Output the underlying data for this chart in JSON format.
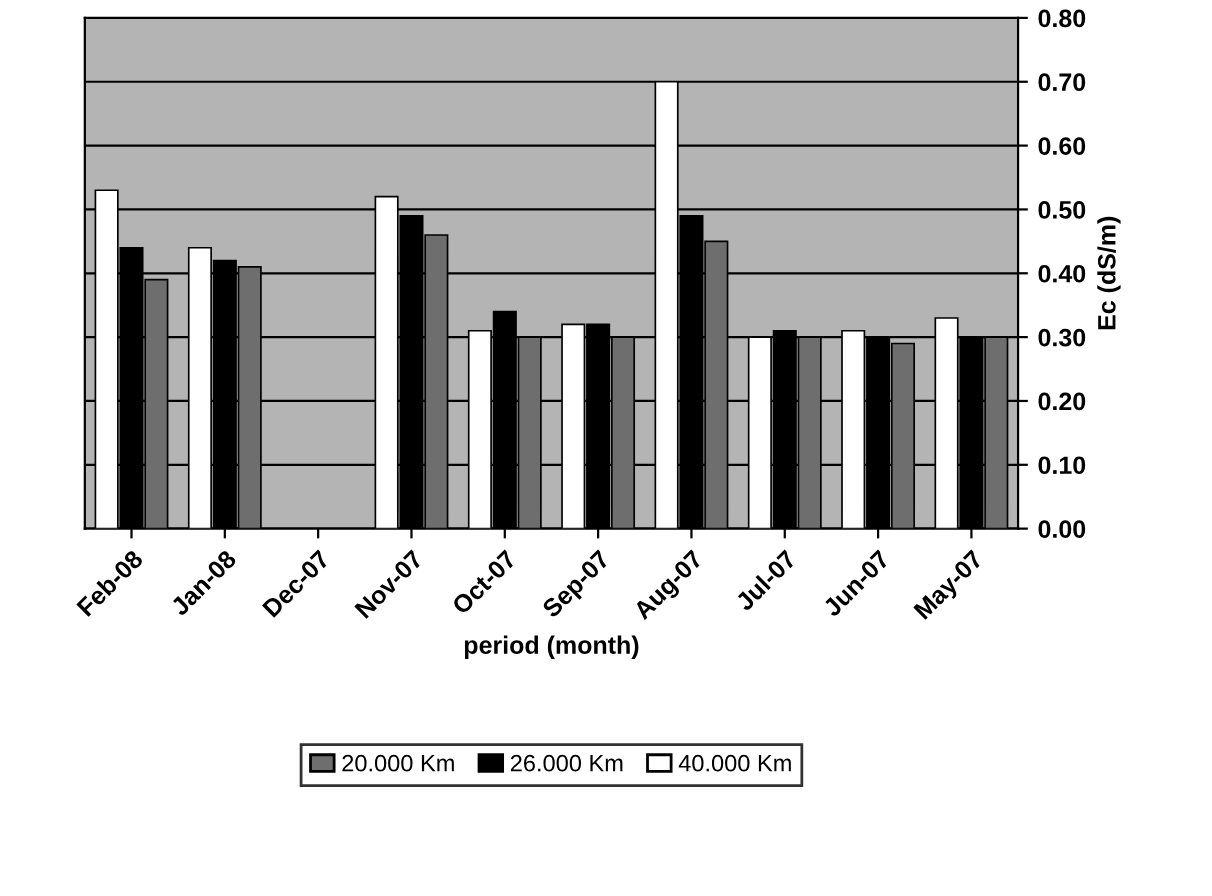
{
  "chart_data": {
    "type": "bar",
    "xlabel": "period (month)",
    "ylabel": "Ec (dS/m)",
    "categories": [
      "Feb-08",
      "Jan-08",
      "Dec-07",
      "Nov-07",
      "Oct-07",
      "Sep-07",
      "Aug-07",
      "Jul-07",
      "Jun-07",
      "May-07"
    ],
    "series": [
      {
        "name": "40.000 Km",
        "color": "#ffffff",
        "values": [
          0.53,
          0.44,
          null,
          0.52,
          0.31,
          0.32,
          0.7,
          0.3,
          0.31,
          0.33
        ]
      },
      {
        "name": "26.000 Km",
        "color": "#000000",
        "values": [
          0.44,
          0.42,
          null,
          0.49,
          0.34,
          0.32,
          0.49,
          0.31,
          0.3,
          0.3
        ]
      },
      {
        "name": "20.000 Km",
        "color": "#6e6e6e",
        "values": [
          0.39,
          0.41,
          null,
          0.46,
          0.3,
          0.3,
          0.45,
          0.3,
          0.29,
          0.3
        ]
      }
    ],
    "ylim": [
      0,
      0.8
    ],
    "yticks": [
      {
        "value": 0,
        "label": "0.00"
      },
      {
        "value": 0.1,
        "label": "0.10"
      },
      {
        "value": 0.2,
        "label": "0.20"
      },
      {
        "value": 0.3,
        "label": "0.30"
      },
      {
        "value": 0.4,
        "label": "0.40"
      },
      {
        "value": 0.5,
        "label": "0.50"
      },
      {
        "value": 0.6,
        "label": "0.60"
      },
      {
        "value": 0.7,
        "label": "0.70"
      },
      {
        "value": 0.8,
        "label": "0.80"
      }
    ],
    "grid": "y",
    "legend": "bottom"
  }
}
